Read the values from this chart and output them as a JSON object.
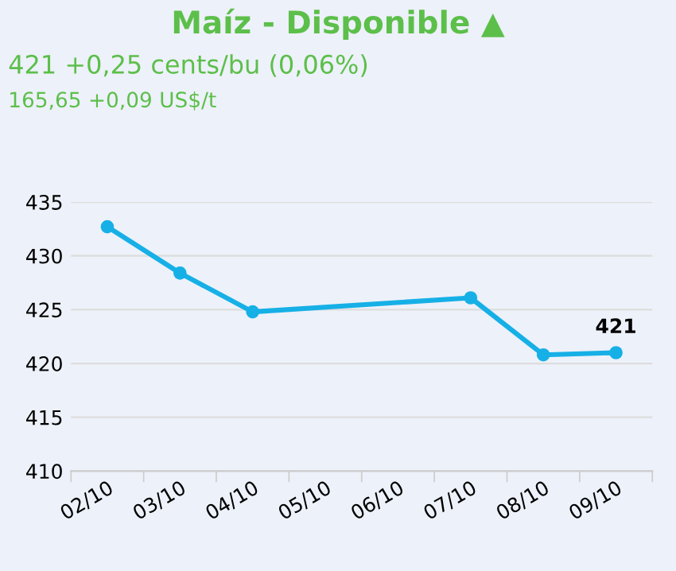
{
  "chart_data": {
    "type": "line",
    "title": "Maíz - Disponible ▲",
    "subtitle": "421 +0,25 cents/bu (0,06%)",
    "annotations": [
      "165,65 +0,09 US$/t"
    ],
    "categories": [
      "02/10",
      "03/10",
      "04/10",
      "05/10",
      "06/10",
      "07/10",
      "08/10",
      "09/10"
    ],
    "series": [
      {
        "color": "#16b0e6",
        "values": [
          432.7,
          428.4,
          424.8,
          null,
          null,
          426.1,
          420.8,
          421
        ],
        "value_labels": [
          null,
          null,
          null,
          null,
          null,
          null,
          null,
          "421"
        ]
      }
    ],
    "ylim": [
      410,
      435
    ],
    "yticks": [
      410,
      415,
      420,
      425,
      430,
      435
    ],
    "grid": "y",
    "marker": "circle",
    "line_style": "solid",
    "legend": false
  }
}
